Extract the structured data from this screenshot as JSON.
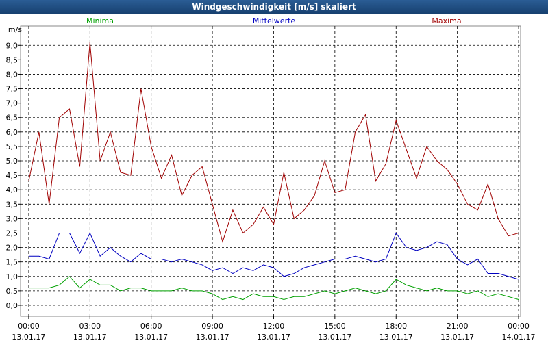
{
  "chart_data": {
    "type": "line",
    "title": "Windgeschwindigkeit [m/s] skaliert",
    "y_label": "m/s",
    "x": [
      0,
      0.5,
      1,
      1.5,
      2,
      2.5,
      3,
      3.5,
      4,
      4.5,
      5,
      5.5,
      6,
      6.5,
      7,
      7.5,
      8,
      8.5,
      9,
      9.5,
      10,
      10.5,
      11,
      11.5,
      12,
      12.5,
      13,
      13.5,
      14,
      14.5,
      15,
      15.5,
      16,
      16.5,
      17,
      17.5,
      18,
      18.5,
      19,
      19.5,
      20,
      20.5,
      21,
      21.5,
      22,
      22.5,
      23,
      23.5,
      24
    ],
    "series": [
      {
        "name": "Minima",
        "color": "#00a000",
        "values": [
          0.6,
          0.6,
          0.6,
          0.7,
          1.0,
          0.6,
          0.9,
          0.7,
          0.7,
          0.5,
          0.6,
          0.6,
          0.5,
          0.5,
          0.5,
          0.6,
          0.5,
          0.5,
          0.4,
          0.2,
          0.3,
          0.2,
          0.4,
          0.3,
          0.3,
          0.2,
          0.3,
          0.3,
          0.4,
          0.5,
          0.4,
          0.5,
          0.6,
          0.5,
          0.4,
          0.5,
          0.9,
          0.7,
          0.6,
          0.5,
          0.6,
          0.5,
          0.5,
          0.4,
          0.5,
          0.3,
          0.4,
          0.3,
          0.2
        ]
      },
      {
        "name": "Mittelwerte",
        "color": "#0000c0",
        "values": [
          1.7,
          1.7,
          1.6,
          2.5,
          2.5,
          1.8,
          2.5,
          1.7,
          2.0,
          1.7,
          1.5,
          1.8,
          1.6,
          1.6,
          1.5,
          1.6,
          1.5,
          1.4,
          1.2,
          1.3,
          1.1,
          1.3,
          1.2,
          1.4,
          1.3,
          1.0,
          1.1,
          1.3,
          1.4,
          1.5,
          1.6,
          1.6,
          1.7,
          1.6,
          1.5,
          1.6,
          2.5,
          2.0,
          1.9,
          2.0,
          2.2,
          2.1,
          1.6,
          1.4,
          1.6,
          1.1,
          1.1,
          1.0,
          0.9
        ]
      },
      {
        "name": "Maxima",
        "color": "#a00000",
        "values": [
          4.3,
          6.0,
          3.5,
          6.5,
          6.8,
          4.8,
          9.1,
          5.0,
          6.0,
          4.6,
          4.5,
          7.5,
          5.5,
          4.4,
          5.2,
          3.8,
          4.5,
          4.8,
          3.5,
          2.2,
          3.3,
          2.5,
          2.8,
          3.4,
          2.8,
          4.6,
          3.0,
          3.3,
          3.8,
          5.0,
          3.9,
          4.0,
          6.0,
          6.6,
          4.3,
          4.9,
          6.4,
          5.4,
          4.4,
          5.5,
          5.0,
          4.7,
          4.2,
          3.5,
          3.3,
          4.2,
          3.0,
          2.4,
          2.5
        ]
      }
    ],
    "xlim": [
      -0.4,
      24.1
    ],
    "xticks": [
      {
        "value": 0,
        "label": "00:00 13.01.17"
      },
      {
        "value": 3,
        "label": "03:00 13.01.17"
      },
      {
        "value": 6,
        "label": "06:00 13.01.17"
      },
      {
        "value": 9,
        "label": "09:00 13.01.17"
      },
      {
        "value": 12,
        "label": "12:00 13.01.17"
      },
      {
        "value": 15,
        "label": "15:00 13.01.17"
      },
      {
        "value": 18,
        "label": "18:00 13.01.17"
      },
      {
        "value": 21,
        "label": "21:00 13.01.17"
      },
      {
        "value": 24,
        "label": "00:00 14.01.17"
      }
    ],
    "ylim": [
      -0.38,
      9.67
    ],
    "yticks": [
      {
        "value": 0,
        "label": "0,0"
      },
      {
        "value": 0.5,
        "label": "0,5"
      },
      {
        "value": 1,
        "label": "1,0"
      },
      {
        "value": 1.5,
        "label": "1,5"
      },
      {
        "value": 2,
        "label": "2,0"
      },
      {
        "value": 2.5,
        "label": "2,5"
      },
      {
        "value": 3,
        "label": "3,0"
      },
      {
        "value": 3.5,
        "label": "3,5"
      },
      {
        "value": 4,
        "label": "4,0"
      },
      {
        "value": 4.5,
        "label": "4,5"
      },
      {
        "value": 5,
        "label": "5,0"
      },
      {
        "value": 5.5,
        "label": "5,5"
      },
      {
        "value": 6,
        "label": "6,0"
      },
      {
        "value": 6.5,
        "label": "6,5"
      },
      {
        "value": 7,
        "label": "7,0"
      },
      {
        "value": 7.5,
        "label": "7,5"
      },
      {
        "value": 8,
        "label": "8,0"
      },
      {
        "value": 8.5,
        "label": "8,5"
      },
      {
        "value": 9,
        "label": "9,0"
      }
    ],
    "grid": true
  }
}
